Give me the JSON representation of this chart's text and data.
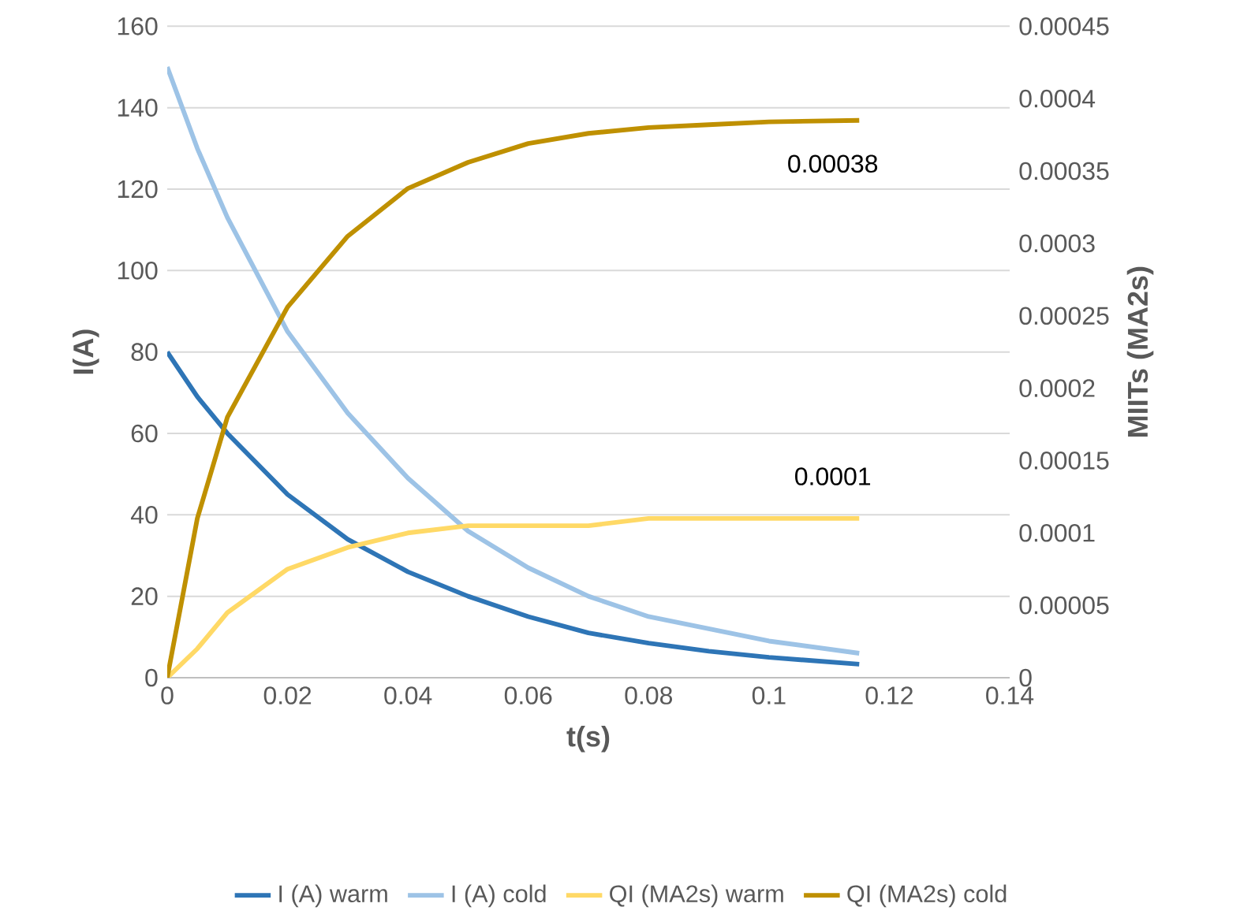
{
  "chart_data": {
    "type": "line",
    "xlabel": "t(s)",
    "ylabel": "I(A)",
    "y2label": "MIITs (MA2s)",
    "x": [
      0,
      0.005,
      0.01,
      0.02,
      0.03,
      0.04,
      0.05,
      0.06,
      0.07,
      0.08,
      0.09,
      0.1,
      0.115
    ],
    "series": [
      {
        "name": "I (A) warm",
        "color": "#2e75b6",
        "values": [
          80,
          69,
          60,
          45,
          34,
          26,
          20,
          15,
          11,
          8.5,
          6.5,
          5,
          3.3
        ]
      },
      {
        "name": "I (A) cold",
        "color": "#9dc3e6",
        "values": [
          150,
          130,
          113,
          85,
          65,
          49,
          36,
          27,
          20,
          15,
          12,
          9,
          6
        ]
      },
      {
        "name": "QI (MA2s) warm",
        "color": "#ffd966",
        "axis": "y2",
        "values": [
          0,
          2e-05,
          4.5e-05,
          7.5e-05,
          9e-05,
          0.0001,
          0.000105,
          0.000105,
          0.000105,
          0.00011,
          0.00011,
          0.00011,
          0.00011
        ]
      },
      {
        "name": "QI (MA2s) cold",
        "color": "#bf9000",
        "axis": "y2",
        "values": [
          0,
          0.00011,
          0.00018,
          0.000256,
          0.000305,
          0.000338,
          0.000356,
          0.000369,
          0.000376,
          0.00038,
          0.000382,
          0.000384,
          0.000385
        ]
      }
    ],
    "xlim": [
      0,
      0.14
    ],
    "xticks": [
      0,
      0.02,
      0.04,
      0.06,
      0.08,
      0.1,
      0.12,
      0.14
    ],
    "ylim": [
      0,
      160
    ],
    "yticks": [
      0,
      20,
      40,
      60,
      80,
      100,
      120,
      140,
      160
    ],
    "y2lim": [
      0,
      0.00045
    ],
    "y2ticks": [
      {
        "value": 0,
        "label": "0"
      },
      {
        "value": 5e-05,
        "label": "0.00005"
      },
      {
        "value": 0.0001,
        "label": "0.0001"
      },
      {
        "value": 0.00015,
        "label": "0.00015"
      },
      {
        "value": 0.0002,
        "label": "0.0002"
      },
      {
        "value": 0.00025,
        "label": "0.00025"
      },
      {
        "value": 0.0003,
        "label": "0.0003"
      },
      {
        "value": 0.00035,
        "label": "0.00035"
      },
      {
        "value": 0.0004,
        "label": "0.0004"
      },
      {
        "value": 0.00045,
        "label": "0.00045"
      }
    ],
    "annotations": [
      "0.00038",
      "0.0001"
    ],
    "grid": "y",
    "legend": "bottom",
    "marker": "none",
    "line_style": "solid"
  }
}
